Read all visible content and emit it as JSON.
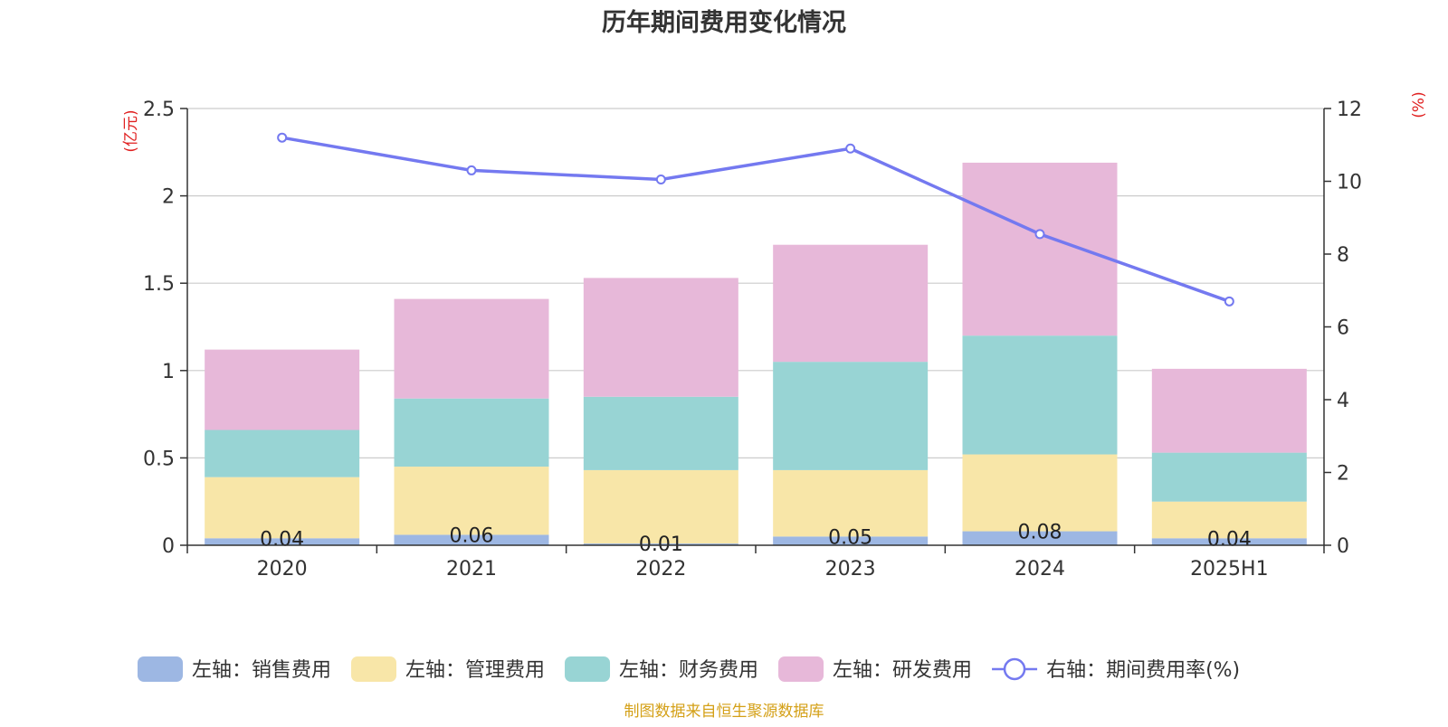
{
  "chart_data": {
    "type": "bar",
    "stacked": true,
    "title": "历年期间费用变化情况",
    "categories": [
      "2020",
      "2021",
      "2022",
      "2023",
      "2024",
      "2025H1"
    ],
    "left_axis": {
      "unit_label": "(亿元)",
      "ylim": [
        0,
        2.5
      ],
      "ticks": [
        "0",
        "0.5",
        "1",
        "1.5",
        "2",
        "2.5"
      ]
    },
    "right_axis": {
      "unit_label": "(%)",
      "ylim": [
        0,
        12
      ],
      "ticks": [
        "0",
        "2",
        "4",
        "6",
        "8",
        "10",
        "12"
      ]
    },
    "series": [
      {
        "name": "左轴：销售费用",
        "kind": "bar",
        "axis": "left",
        "color": "#9db7e3",
        "values": [
          0.04,
          0.06,
          0.01,
          0.05,
          0.08,
          0.04
        ],
        "data_labels": [
          "0.04",
          "0.06",
          "0.01",
          "0.05",
          "0.08",
          "0.04"
        ]
      },
      {
        "name": "左轴：管理费用",
        "kind": "bar",
        "axis": "left",
        "color": "#f8e6a8",
        "values": [
          0.35,
          0.39,
          0.42,
          0.38,
          0.44,
          0.21
        ]
      },
      {
        "name": "左轴：财务费用",
        "kind": "bar",
        "axis": "left",
        "color": "#98d4d4",
        "values": [
          0.27,
          0.39,
          0.42,
          0.62,
          0.68,
          0.28
        ]
      },
      {
        "name": "左轴：研发费用",
        "kind": "bar",
        "axis": "left",
        "color": "#e7b8d9",
        "values": [
          0.46,
          0.57,
          0.68,
          0.67,
          0.99,
          0.48
        ]
      },
      {
        "name": "右轴：期间费用率(%)",
        "kind": "line",
        "axis": "right",
        "color": "#7479f0",
        "values": [
          11.2,
          10.3,
          10.05,
          10.9,
          8.55,
          6.7
        ]
      }
    ],
    "grid": true,
    "legend_position": "bottom"
  },
  "source_note": "制图数据来自恒生聚源数据库",
  "colors": {
    "axis_unit": "#e02020",
    "source_note": "#d4a017",
    "grid": "#cccccc",
    "text": "#333333"
  }
}
